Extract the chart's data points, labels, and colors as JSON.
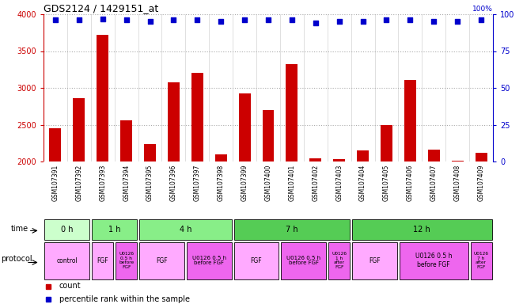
{
  "title": "GDS2124 / 1429151_at",
  "samples": [
    "GSM107391",
    "GSM107392",
    "GSM107393",
    "GSM107394",
    "GSM107395",
    "GSM107396",
    "GSM107397",
    "GSM107398",
    "GSM107399",
    "GSM107400",
    "GSM107401",
    "GSM107402",
    "GSM107403",
    "GSM107404",
    "GSM107405",
    "GSM107406",
    "GSM107407",
    "GSM107408",
    "GSM107409"
  ],
  "counts": [
    2450,
    2860,
    3720,
    2560,
    2240,
    3080,
    3200,
    2100,
    2930,
    2700,
    3320,
    2040,
    2030,
    2150,
    2490,
    3110,
    2160,
    2010,
    2120
  ],
  "percentiles": [
    96,
    96,
    97,
    96,
    95,
    96,
    96,
    95,
    96,
    96,
    96,
    94,
    95,
    95,
    96,
    96,
    95,
    95,
    96
  ],
  "ylim_left": [
    2000,
    4000
  ],
  "ylim_right": [
    0,
    100
  ],
  "bar_color": "#cc0000",
  "dot_color": "#0000cc",
  "grid_color": "#aaaaaa",
  "time_groups": [
    {
      "label": "0 h",
      "start": 0,
      "end": 2,
      "color": "#ccffcc"
    },
    {
      "label": "1 h",
      "start": 2,
      "end": 4,
      "color": "#88ee88"
    },
    {
      "label": "4 h",
      "start": 4,
      "end": 8,
      "color": "#88ee88"
    },
    {
      "label": "7 h",
      "start": 8,
      "end": 13,
      "color": "#55cc55"
    },
    {
      "label": "12 h",
      "start": 13,
      "end": 19,
      "color": "#55cc55"
    }
  ],
  "protocol_groups": [
    {
      "label": "control",
      "start": 0,
      "end": 2,
      "color": "#ffaaff"
    },
    {
      "label": "FGF",
      "start": 2,
      "end": 3,
      "color": "#ffaaff"
    },
    {
      "label": "U0126\n0.5 h\nbefore\nFGF",
      "start": 3,
      "end": 4,
      "color": "#ee66ee"
    },
    {
      "label": "FGF",
      "start": 4,
      "end": 6,
      "color": "#ffaaff"
    },
    {
      "label": "U0126 0.5 h\nbefore FGF",
      "start": 6,
      "end": 8,
      "color": "#ee66ee"
    },
    {
      "label": "FGF",
      "start": 8,
      "end": 10,
      "color": "#ffaaff"
    },
    {
      "label": "U0126 0.5 h\nbefore FGF",
      "start": 10,
      "end": 12,
      "color": "#ee66ee"
    },
    {
      "label": "U0126\n1 h\nafter\nFGF",
      "start": 12,
      "end": 13,
      "color": "#ee66ee"
    },
    {
      "label": "FGF",
      "start": 13,
      "end": 15,
      "color": "#ffaaff"
    },
    {
      "label": "U0126 0.5 h\nbefore FGF",
      "start": 15,
      "end": 18,
      "color": "#ee66ee"
    },
    {
      "label": "U0126\n7 h\nafter\nFGF",
      "start": 18,
      "end": 19,
      "color": "#ee66ee"
    }
  ],
  "legend_count_color": "#cc0000",
  "legend_dot_color": "#0000cc",
  "left_yticks": [
    2000,
    2500,
    3000,
    3500,
    4000
  ],
  "right_yticks": [
    0,
    25,
    50,
    75,
    100
  ],
  "tick_label_color_left": "#cc0000",
  "tick_label_color_right": "#0000cc",
  "xtick_bg_color": "#dddddd",
  "fig_bg": "#ffffff"
}
